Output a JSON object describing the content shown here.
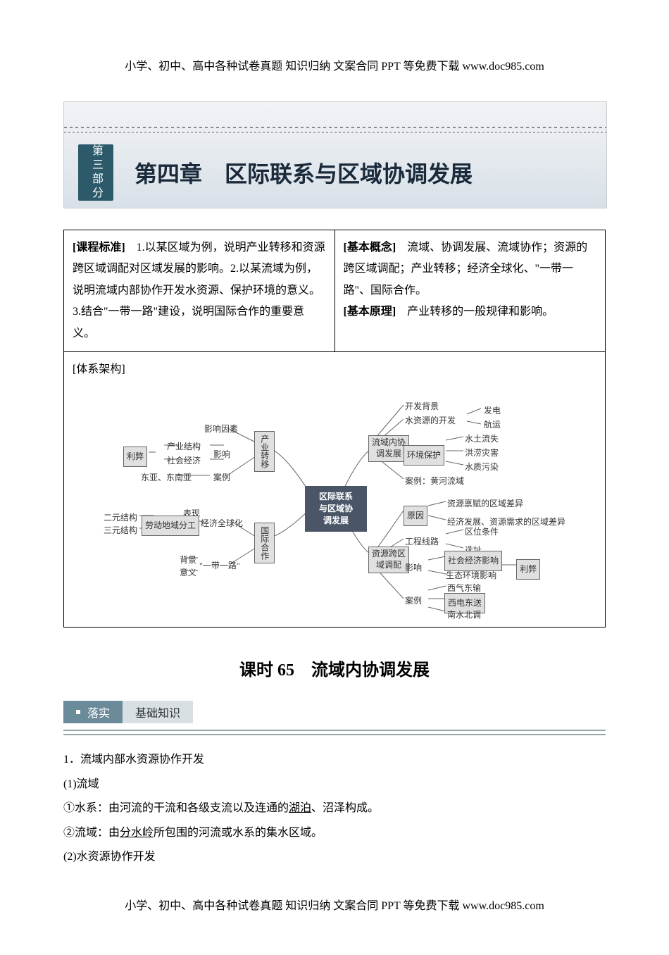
{
  "header_footer": "小学、初中、高中各种试卷真题 知识归纳 文案合同 PPT 等免费下载    www.doc985.com",
  "banner": {
    "part_label": "第三部分",
    "chapter_title": "第四章　区际联系与区域协调发展"
  },
  "info_table": {
    "standard_label": "[课程标准]",
    "standard_text": "　1.以某区域为例，说明产业转移和资源跨区域调配对区域发展的影响。2.以某流域为例，说明流域内部协作开发水资源、保护环境的意义。3.结合\"一带一路\"建设，说明国际合作的重要意义。",
    "concept_label": "[基本概念]",
    "concept_text": "　流域、协调发展、流域协作；资源的跨区域调配；产业转移；经济全球化、\"一带一路\"、国际合作。",
    "principle_label": "[基本原理]",
    "principle_text": "　产业转移的一般规律和影响。",
    "arch_label": "[体系架构]"
  },
  "diagram": {
    "center": "区际联系\n与区域协\n调发展",
    "l_chanye": "产业转移",
    "l_yingxiang_yinsu": "影响因素",
    "l_lib": "利弊",
    "l_chanye_jiegou": "产业结构",
    "l_shehui_jingji": "社会经济",
    "l_yingxiang": "影响",
    "l_anli": "案例",
    "l_dongya": "东亚、东南亚",
    "l_guoji": "国际合作",
    "l_quanqiuhua": "经济全球化",
    "l_biaoxian": "表现",
    "l_eryuan": "二元结构",
    "l_sanyuan": "三元结构",
    "l_laodong": "劳动地域分工",
    "l_yidaiyilu": "\"一带一路\"",
    "l_beijing": "背景",
    "l_yiyi": "意义",
    "r_liuyu": "流域内协\n调发展",
    "r_kaifa_bj": "开发背景",
    "r_shuiziyuan": "水资源的开发",
    "r_fadian": "发电",
    "r_hangyun": "航运",
    "r_huanjing": "环境保护",
    "r_shuitu": "水土流失",
    "r_honglao": "洪涝灾害",
    "r_shuizhi": "水质污染",
    "r_anli_hh": "案例：黄河流域",
    "r_ziyuan": "资源跨区\n域调配",
    "r_yuanyin": "原因",
    "r_bingfu": "资源禀赋的区域差异",
    "r_jingji": "经济发展、资源需求的区域差异",
    "r_gongcheng": "工程线路",
    "r_quwei": "区位条件",
    "r_xuanzhi": "选址",
    "r_yingxiang": "影响",
    "r_shehui": "社会经济影响",
    "r_shengtai": "生态环境影响",
    "r_lib": "利弊",
    "r_anli": "案例",
    "r_xiqi": "西气东输",
    "r_xidian": "西电东送",
    "r_nanshui": "南水北调"
  },
  "lesson_title": "课时 65　流域内协调发展",
  "section": {
    "tab1": "落实",
    "tab2": "基础知识"
  },
  "content": {
    "h1": "1．流域内部水资源协作开发",
    "p1": "(1)流域",
    "p2_a": "①水系：由河流的干流和各级支流以及连通的",
    "p2_u": "湖泊",
    "p2_b": "、沼泽构成。",
    "p3_a": "②流域：由",
    "p3_u": "分水岭",
    "p3_b": "所包围的河流或水系的集水区域。",
    "p4": "(2)水资源协作开发"
  },
  "colors": {
    "banner_tab": "#2d5a6a",
    "section_tab": "#6b8a9a",
    "section_tab2": "#d8e0e4",
    "diagram_dark": "#4a5568",
    "border": "#000000"
  }
}
